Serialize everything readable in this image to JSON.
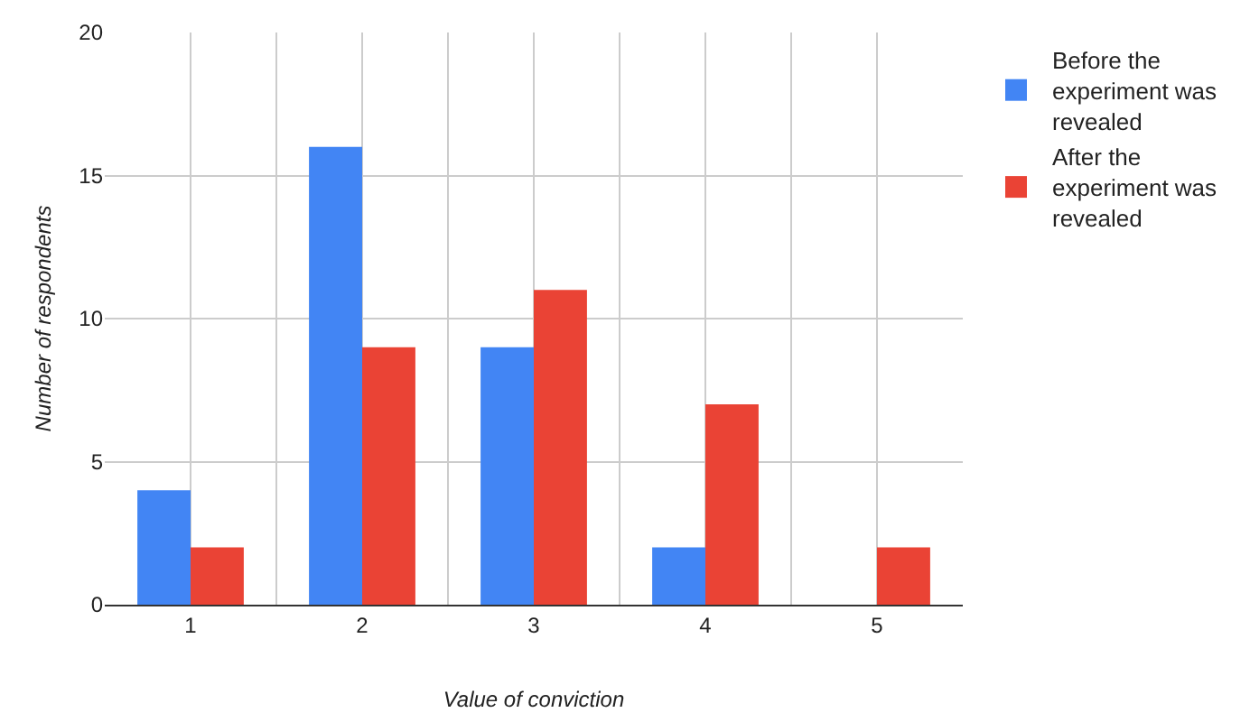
{
  "chart_data": {
    "type": "bar",
    "xlabel": "Value of conviction",
    "ylabel": "Number of respondents",
    "categories": [
      "1",
      "2",
      "3",
      "4",
      "5"
    ],
    "series": [
      {
        "name": "Before the experiment was revealed",
        "color": "#4285f4",
        "values": [
          4,
          16,
          9,
          2,
          0
        ]
      },
      {
        "name": "After the experiment was revealed",
        "color": "#ea4335",
        "values": [
          2,
          9,
          11,
          7,
          2
        ]
      }
    ],
    "ylim": [
      0,
      20
    ],
    "yticks": [
      0,
      5,
      10,
      15,
      20
    ],
    "grid": true,
    "legend": "top right"
  }
}
